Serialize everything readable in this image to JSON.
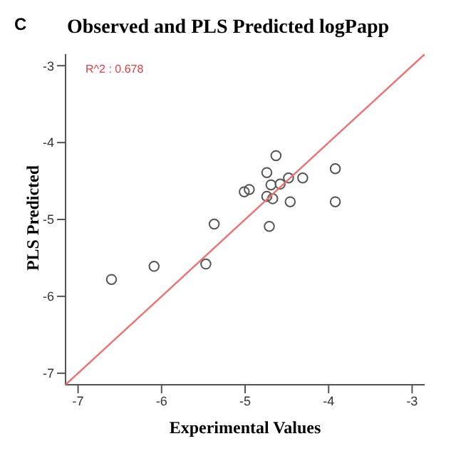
{
  "chart_data": {
    "type": "scatter",
    "title": "Observed and PLS Predicted logPapp",
    "xlabel": "Experimental Values",
    "ylabel": "PLS Predicted",
    "annotations": [
      "C",
      "R^2 : 0.678"
    ],
    "xlim": [
      -7.15,
      -2.85
    ],
    "ylim": [
      -7.15,
      -2.85
    ],
    "xticks": [
      -7,
      -6,
      -5,
      -4,
      -3
    ],
    "yticks": [
      -7,
      -6,
      -5,
      -4,
      -3
    ],
    "grid": false,
    "legend": false,
    "series": [
      {
        "marker": "circle",
        "color": "#555555",
        "x": [
          -4.63,
          -4.74,
          -3.92,
          -4.48,
          -4.31,
          -4.69,
          -4.58,
          -5.01,
          -4.95,
          -4.74,
          -4.67,
          -4.46,
          -3.92,
          -5.37,
          -4.71,
          -5.47,
          -6.09,
          -6.6
        ],
        "values": [
          -4.17,
          -4.39,
          -4.34,
          -4.46,
          -4.46,
          -4.55,
          -4.54,
          -4.64,
          -4.61,
          -4.7,
          -4.73,
          -4.77,
          -4.77,
          -5.06,
          -5.09,
          -5.58,
          -5.61,
          -5.78
        ]
      },
      {
        "type": "line",
        "marker": "none",
        "color": "#f07070",
        "x": [
          -7.15,
          -2.85
        ],
        "values": [
          -7.15,
          -2.85
        ]
      }
    ]
  }
}
